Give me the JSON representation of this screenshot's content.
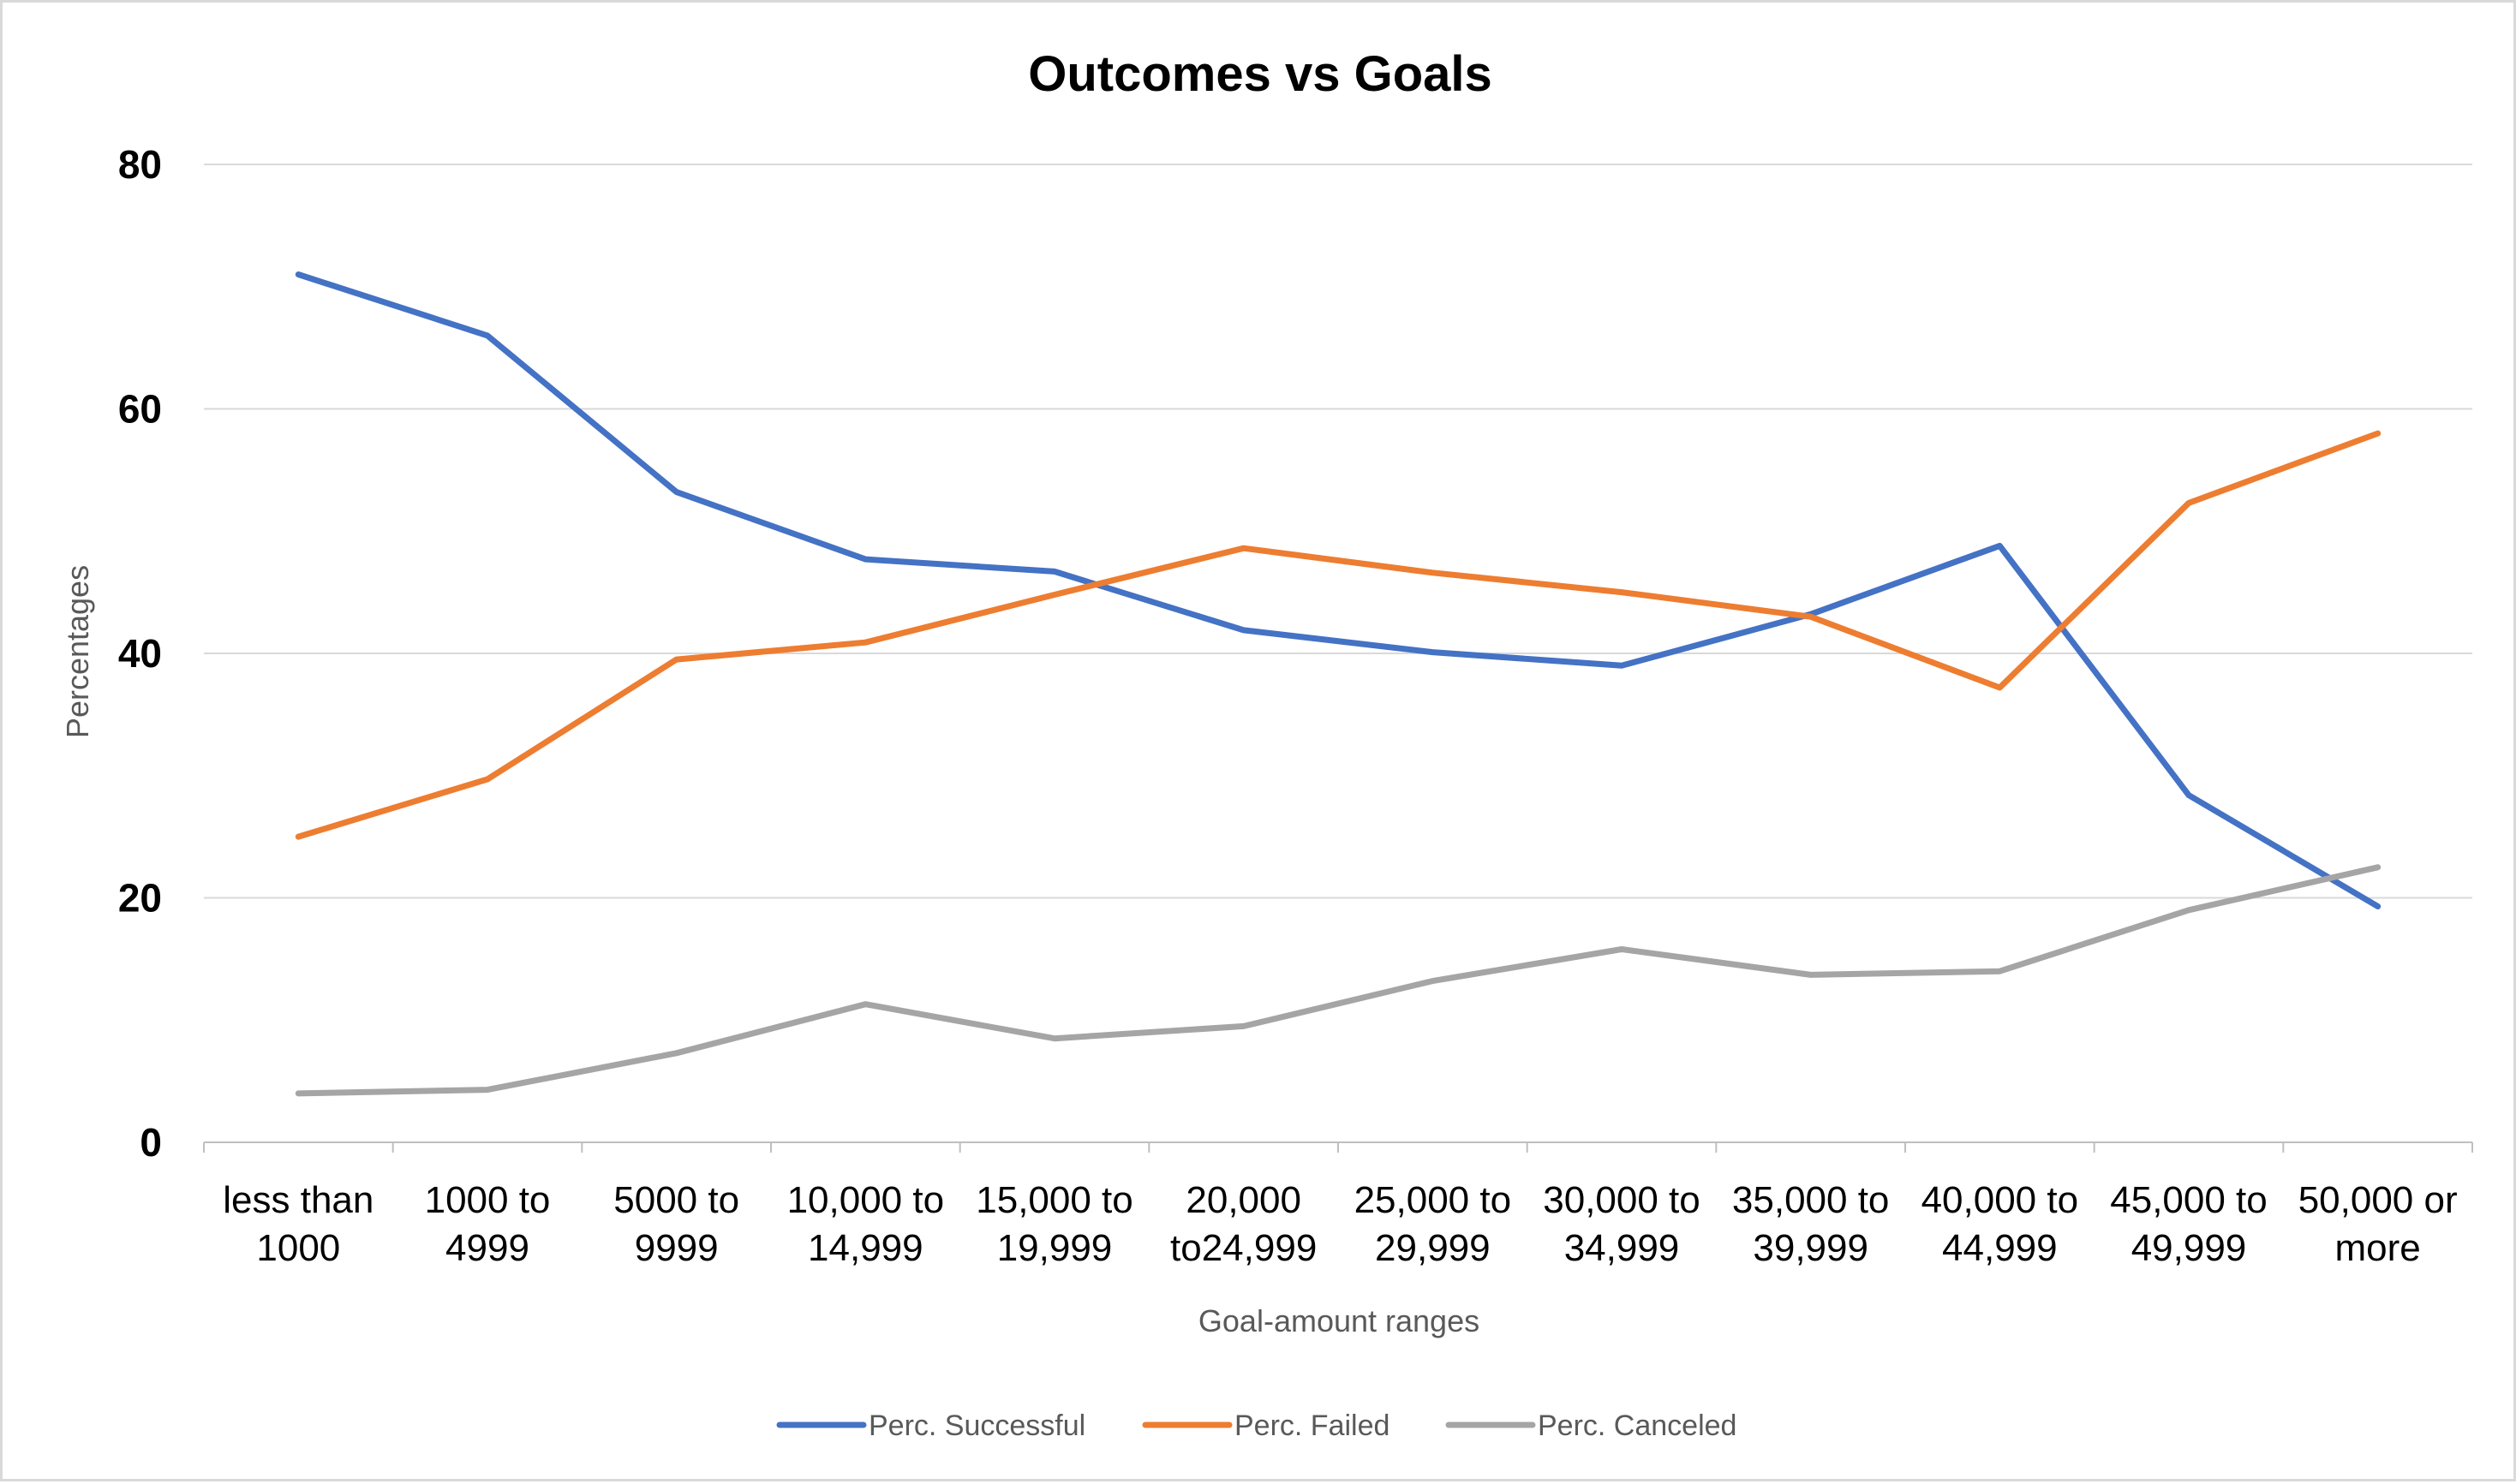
{
  "chart_data": {
    "type": "line",
    "title": "Outcomes vs Goals",
    "xlabel": "Goal-amount ranges",
    "ylabel": "Percentages",
    "ylim": [
      0,
      80
    ],
    "yticks": [
      0,
      20,
      40,
      60,
      80
    ],
    "grid": true,
    "legend_position": "bottom",
    "categories": [
      [
        "less than",
        "1000"
      ],
      [
        "1000 to",
        "4999"
      ],
      [
        "5000 to",
        "9999"
      ],
      [
        "10,000 to",
        "14,999"
      ],
      [
        "15,000 to",
        "19,999"
      ],
      [
        "20,000",
        "to24,999"
      ],
      [
        "25,000 to",
        "29,999"
      ],
      [
        "30,000 to",
        "34,999"
      ],
      [
        "35,000 to",
        "39,999"
      ],
      [
        "40,000 to",
        "44,999"
      ],
      [
        "45,000 to",
        "49,999"
      ],
      [
        "50,000 or",
        "more"
      ]
    ],
    "series": [
      {
        "name": "Perc. Successful",
        "color": "#4472c4",
        "values": [
          71.0,
          66.0,
          53.2,
          47.7,
          46.7,
          41.9,
          40.1,
          39.0,
          43.2,
          48.8,
          28.4,
          19.3
        ]
      },
      {
        "name": "Perc. Failed",
        "color": "#ed7d31",
        "values": [
          25.0,
          29.7,
          39.5,
          40.9,
          44.8,
          48.6,
          46.6,
          45.0,
          43.0,
          37.2,
          52.3,
          58.0
        ]
      },
      {
        "name": "Perc. Canceled",
        "color": "#a5a5a5",
        "values": [
          4.0,
          4.3,
          7.3,
          11.3,
          8.5,
          9.5,
          13.2,
          15.8,
          13.7,
          14.0,
          19.0,
          22.5
        ]
      }
    ]
  }
}
